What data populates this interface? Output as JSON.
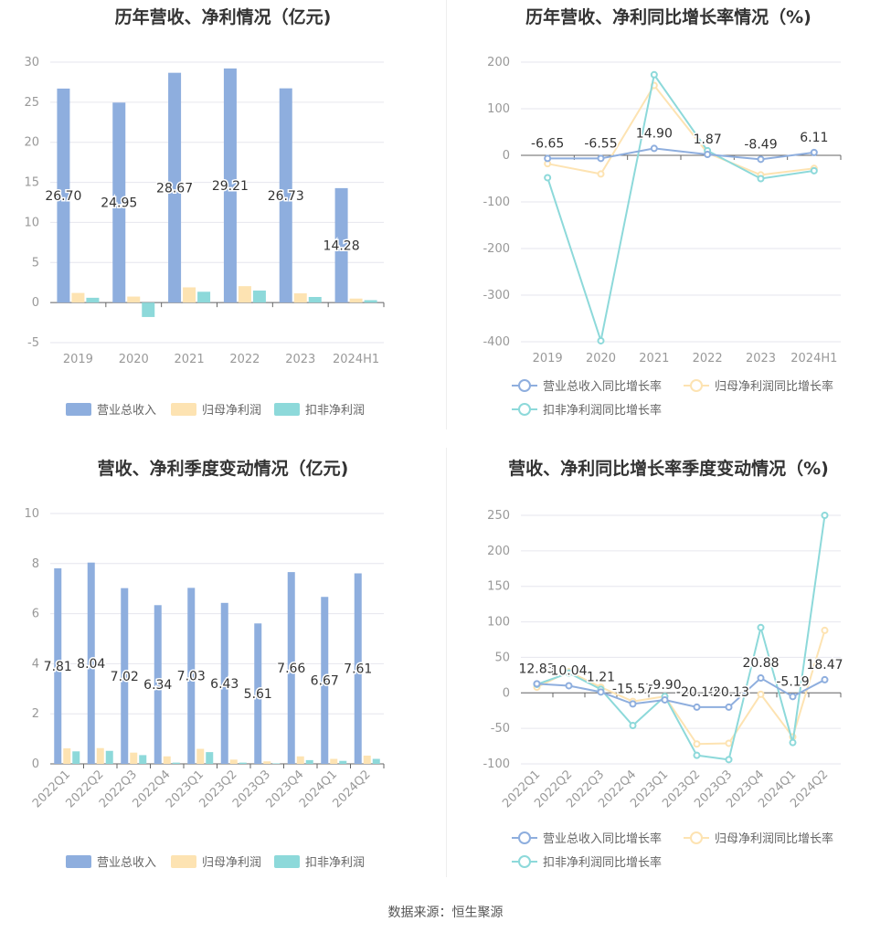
{
  "source_label": "数据来源：恒生聚源",
  "colors": {
    "revenue": "#8eaede",
    "net": "#fde3b2",
    "deducted": "#8dd9da",
    "axis": "#999999",
    "grid": "#e6e6ee",
    "label": "#333333"
  },
  "chart_data": [
    {
      "type": "bar",
      "title": "历年营收、净利情况（亿元)",
      "categories": [
        "2019",
        "2020",
        "2021",
        "2022",
        "2023",
        "2024H1"
      ],
      "ylim": [
        -5,
        30
      ],
      "yticks": [
        -5,
        0,
        5,
        10,
        15,
        20,
        25,
        30
      ],
      "series": [
        {
          "name": "营业总收入",
          "values": [
            26.7,
            24.95,
            28.67,
            29.21,
            26.73,
            14.28
          ],
          "labels": [
            "26.70",
            "24.95",
            "28.67",
            "29.21",
            "26.73",
            "14.28"
          ]
        },
        {
          "name": "归母净利润",
          "values": [
            1.2,
            0.75,
            1.9,
            2.05,
            1.15,
            0.5
          ]
        },
        {
          "name": "扣非净利润",
          "values": [
            0.6,
            -1.8,
            1.35,
            1.5,
            0.7,
            0.3
          ]
        }
      ],
      "legend_position": "bottom"
    },
    {
      "type": "line",
      "title": "历年营收、净利同比增长率情况（%)",
      "categories": [
        "2019",
        "2020",
        "2021",
        "2022",
        "2023",
        "2024H1"
      ],
      "ylim": [
        -400,
        200
      ],
      "yticks": [
        -400,
        -300,
        -200,
        -100,
        0,
        100,
        200
      ],
      "series": [
        {
          "name": "营业总收入同比增长率",
          "values": [
            -6.65,
            -6.55,
            14.9,
            1.87,
            -8.49,
            6.11
          ],
          "labels": [
            "-6.65",
            "-6.55",
            "14.90",
            "1.87",
            "-8.49",
            "6.11"
          ]
        },
        {
          "name": "归母净利润同比增长率",
          "values": [
            -18,
            -40,
            150,
            5,
            -42,
            -28
          ]
        },
        {
          "name": "扣非净利润同比增长率",
          "values": [
            -48,
            -398,
            173,
            10,
            -50,
            -33
          ]
        }
      ],
      "legend_position": "bottom"
    },
    {
      "type": "bar",
      "title": "营收、净利季度变动情况（亿元)",
      "categories": [
        "2022Q1",
        "2022Q2",
        "2022Q3",
        "2022Q4",
        "2023Q1",
        "2023Q2",
        "2023Q3",
        "2023Q4",
        "2024Q1",
        "2024Q2"
      ],
      "ylim": [
        0,
        10
      ],
      "yticks": [
        0,
        2,
        4,
        6,
        8,
        10
      ],
      "series": [
        {
          "name": "营业总收入",
          "values": [
            7.81,
            8.04,
            7.02,
            6.34,
            7.03,
            6.43,
            5.61,
            7.66,
            6.67,
            7.61
          ],
          "labels": [
            "7.81",
            "8.04",
            "7.02",
            "6.34",
            "7.03",
            "6.43",
            "5.61",
            "7.66",
            "6.67",
            "7.61"
          ]
        },
        {
          "name": "归母净利润",
          "values": [
            0.62,
            0.63,
            0.45,
            0.3,
            0.6,
            0.17,
            0.1,
            0.3,
            0.2,
            0.33
          ]
        },
        {
          "name": "扣非净利润",
          "values": [
            0.5,
            0.52,
            0.35,
            0.05,
            0.47,
            0.05,
            0.02,
            0.15,
            0.12,
            0.2
          ]
        }
      ],
      "legend_position": "bottom"
    },
    {
      "type": "line",
      "title": "营收、净利同比增长率季度变动情况（%)",
      "categories": [
        "2022Q1",
        "2022Q2",
        "2022Q3",
        "2022Q4",
        "2023Q1",
        "2023Q2",
        "2023Q3",
        "2023Q4",
        "2024Q1",
        "2024Q2"
      ],
      "ylim": [
        -100,
        250
      ],
      "yticks": [
        -100,
        -50,
        0,
        50,
        100,
        150,
        200,
        250
      ],
      "series": [
        {
          "name": "营业总收入同比增长率",
          "values": [
            12.83,
            10.04,
            1.21,
            -15.57,
            -9.9,
            -20.1,
            -20.13,
            20.88,
            -5.19,
            18.47
          ],
          "labels": [
            "12.83",
            "10.04",
            "1.21",
            "-15.57",
            "-9.90",
            "-20.10",
            "-20.13",
            "20.88",
            "-5.19",
            "18.47"
          ]
        },
        {
          "name": "归母净利润同比增长率",
          "values": [
            8,
            30,
            8,
            -12,
            -5,
            -72,
            -71,
            -2,
            -62,
            88
          ]
        },
        {
          "name": "扣非净利润同比增长率",
          "values": [
            12,
            28,
            5,
            -46,
            -5,
            -88,
            -94,
            92,
            -70,
            250
          ]
        }
      ],
      "legend_position": "bottom"
    }
  ]
}
